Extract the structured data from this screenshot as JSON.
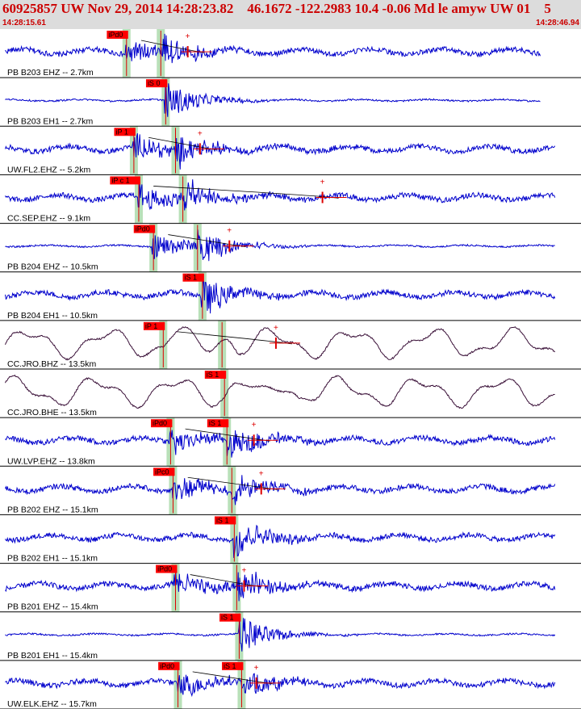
{
  "header": {
    "title": "60925857 UW Nov 29, 2014 14:28:23.82    46.1672 -122.2983 10.4 -0.06 Md le amyw UW 01    5",
    "start_time": "14:28:15.61",
    "end_time": "14:28:46.94"
  },
  "colors": {
    "trace_default": "#0000cc",
    "trace_broadband": "#3a1038",
    "pick": "#dd0000",
    "pick_label_bg": "#ff0000",
    "pick_window": "#b8e0b8",
    "panel_border": "#000000",
    "header_bg": "#dcdcdc",
    "header_text": "#cc0000"
  },
  "chart_data": {
    "type": "seismogram",
    "time_range": [
      "14:28:15.61",
      "14:28:46.94"
    ],
    "traces": [
      {
        "label": "PB B203 EHZ -- 2.7km",
        "color": "blue",
        "picks": [
          {
            "label": "iPd0",
            "t": 5.0
          },
          {
            "label": "",
            "t": 6.4
          }
        ],
        "coda_t": 7.5
      },
      {
        "label": "PB B203 EH1 -- 2.7km",
        "color": "blue",
        "picks": [
          {
            "label": "iS 0",
            "t": 6.6
          }
        ],
        "coda_t": null
      },
      {
        "label": "UW.FL2.EHZ -- 5.2km",
        "color": "blue",
        "picks": [
          {
            "label": "iP 1",
            "t": 5.3
          },
          {
            "label": "",
            "t": 7.0
          }
        ],
        "coda_t": 8.0
      },
      {
        "label": "CC.SEP.EHZ -- 9.1km",
        "color": "blue",
        "picks": [
          {
            "label": "iP c 1",
            "t": 5.5
          },
          {
            "label": "",
            "t": 7.3
          }
        ],
        "coda_t": 13.0
      },
      {
        "label": "PB B204 EHZ -- 10.5km",
        "color": "blue",
        "picks": [
          {
            "label": "iPd0",
            "t": 6.1
          },
          {
            "label": "",
            "t": 7.9
          }
        ],
        "coda_t": 9.2
      },
      {
        "label": "PB B204 EH1 -- 10.5km",
        "color": "blue",
        "picks": [
          {
            "label": "iS 1",
            "t": 8.1
          }
        ],
        "coda_t": null
      },
      {
        "label": "CC.JRO.BHZ -- 13.5km",
        "color": "purple",
        "picks": [
          {
            "label": "iP 1",
            "t": 6.5
          },
          {
            "label": "",
            "t": 8.9
          }
        ],
        "coda_t": 11.1
      },
      {
        "label": "CC.JRO.BHE -- 13.5km",
        "color": "purple",
        "picks": [
          {
            "label": "iS 1",
            "t": 9.0
          }
        ],
        "coda_t": null
      },
      {
        "label": "UW.LVP.EHZ -- 13.8km",
        "color": "blue",
        "picks": [
          {
            "label": "iPd0",
            "t": 6.8
          },
          {
            "label": "iS 1",
            "t": 9.1
          }
        ],
        "coda_t": 10.2
      },
      {
        "label": "PB B202 EHZ -- 15.1km",
        "color": "blue",
        "picks": [
          {
            "label": "iPc0",
            "t": 6.9
          },
          {
            "label": "",
            "t": 9.3
          }
        ],
        "coda_t": 10.5
      },
      {
        "label": "PB B202 EH1 -- 15.1km",
        "color": "blue",
        "picks": [
          {
            "label": "iS 1",
            "t": 9.4
          }
        ],
        "coda_t": null
      },
      {
        "label": "PB B201 EHZ -- 15.4km",
        "color": "blue",
        "picks": [
          {
            "label": "iPd0",
            "t": 7.0
          },
          {
            "label": "",
            "t": 9.5
          }
        ],
        "coda_t": 9.8
      },
      {
        "label": "PB B201 EH1 -- 15.4km",
        "color": "blue",
        "picks": [
          {
            "label": "iS 1",
            "t": 9.6
          }
        ],
        "coda_t": null
      },
      {
        "label": "UW.ELK.EHZ -- 15.7km",
        "color": "blue",
        "picks": [
          {
            "label": "iPd0",
            "t": 7.1
          },
          {
            "label": "iS 1",
            "t": 9.7
          }
        ],
        "coda_t": 10.3
      }
    ]
  }
}
